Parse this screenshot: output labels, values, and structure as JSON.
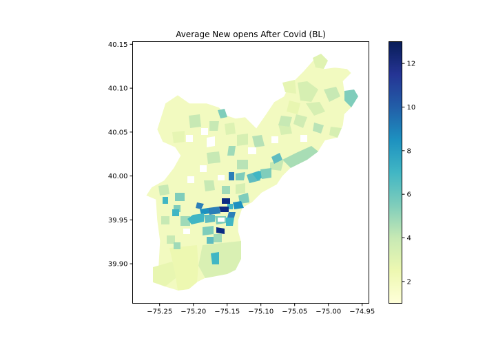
{
  "chart_data": {
    "type": "choropleth",
    "title": "Average New opens After Covid (BL)",
    "x_ticks": [
      "−75.25",
      "−75.20",
      "−75.15",
      "−75.10",
      "−75.05",
      "−75.00",
      "−74.95"
    ],
    "y_ticks": [
      "40.15",
      "40.10",
      "40.05",
      "40.00",
      "39.95",
      "39.90"
    ],
    "x_tick_values": [
      -75.25,
      -75.2,
      -75.15,
      -75.1,
      -75.05,
      -75.0,
      -74.95
    ],
    "y_tick_values": [
      40.15,
      40.1,
      40.05,
      40.0,
      39.95,
      39.9
    ],
    "xlim": [
      -75.29,
      -74.94
    ],
    "ylim": [
      39.855,
      40.153
    ],
    "colorbar": {
      "ticks": [
        "2",
        "4",
        "6",
        "8",
        "10",
        "12"
      ],
      "tick_values": [
        2,
        4,
        6,
        8,
        10,
        12
      ],
      "range": [
        1,
        13
      ],
      "colormap": "YlGnBu"
    },
    "highlight_values": [
      {
        "lon": -75.155,
        "lat": 39.972,
        "value": 13
      },
      {
        "lon": -75.15,
        "lat": 39.955,
        "value": 13
      },
      {
        "lon": -75.148,
        "lat": 39.937,
        "value": 13
      },
      {
        "lon": -75.145,
        "lat": 39.96,
        "value": 10
      },
      {
        "lon": -75.13,
        "lat": 39.997,
        "value": 10
      },
      {
        "lon": -75.195,
        "lat": 39.966,
        "value": 10
      },
      {
        "lon": -75.155,
        "lat": 39.906,
        "value": 8
      },
      {
        "lon": -75.075,
        "lat": 40.018,
        "value": 7
      },
      {
        "lon": -75.19,
        "lat": 39.943,
        "value": 8
      },
      {
        "lon": -74.97,
        "lat": 40.09,
        "value": 5
      },
      {
        "lon": -75.02,
        "lat": 40.012,
        "value": 5
      }
    ]
  }
}
